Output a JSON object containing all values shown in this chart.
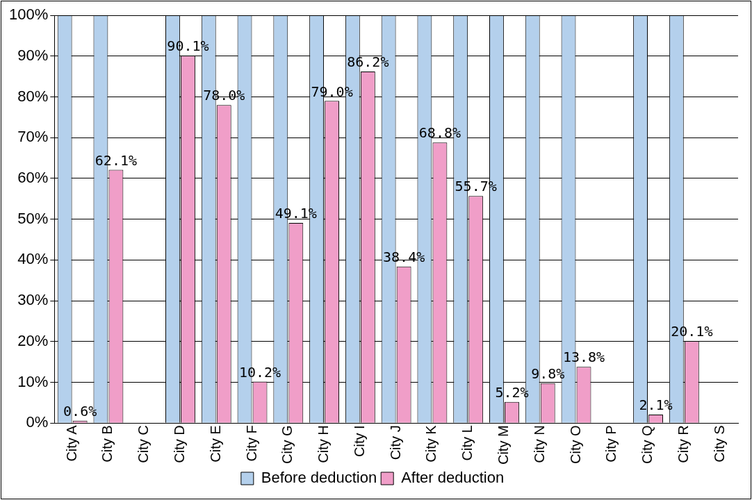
{
  "chart_data": {
    "type": "bar",
    "categories": [
      "City A",
      "City B",
      "City C",
      "City D",
      "City E",
      "City F",
      "City G",
      "City H",
      "City I",
      "City J",
      "City K",
      "City L",
      "City M",
      "City N",
      "City O",
      "City P",
      "City Q",
      "City R",
      "City S"
    ],
    "series": [
      {
        "name": "Before deduction",
        "color": "#b4d0ec",
        "values": [
          100,
          100,
          null,
          100,
          100,
          100,
          100,
          100,
          100,
          100,
          100,
          100,
          100,
          100,
          100,
          null,
          100,
          100,
          null
        ]
      },
      {
        "name": "After deduction",
        "color": "#f09ec8",
        "values": [
          0.6,
          62.1,
          null,
          90.1,
          78.0,
          10.2,
          49.1,
          79.0,
          86.2,
          38.4,
          68.8,
          55.7,
          5.2,
          9.8,
          13.8,
          null,
          2.1,
          20.1,
          null
        ],
        "value_labels": [
          "0.6%",
          "62.1%",
          null,
          "90.1%",
          "78.0%",
          "10.2%",
          "49.1%",
          "79.0%",
          "86.2%",
          "38.4%",
          "68.8%",
          "55.7%",
          "5.2%",
          "9.8%",
          "13.8%",
          null,
          "2.1%",
          "20.1%",
          null
        ]
      }
    ],
    "ylim": [
      0,
      100
    ],
    "yticks": [
      {
        "value": 0,
        "label": "0%"
      },
      {
        "value": 10,
        "label": "10%"
      },
      {
        "value": 20,
        "label": "20%"
      },
      {
        "value": 30,
        "label": "30%"
      },
      {
        "value": 40,
        "label": "40%"
      },
      {
        "value": 50,
        "label": "50%"
      },
      {
        "value": 60,
        "label": "60%"
      },
      {
        "value": 70,
        "label": "70%"
      },
      {
        "value": 80,
        "label": "80%"
      },
      {
        "value": 90,
        "label": "90%"
      },
      {
        "value": 100,
        "label": "100%"
      }
    ],
    "grid": "y",
    "legend": "bottom"
  }
}
